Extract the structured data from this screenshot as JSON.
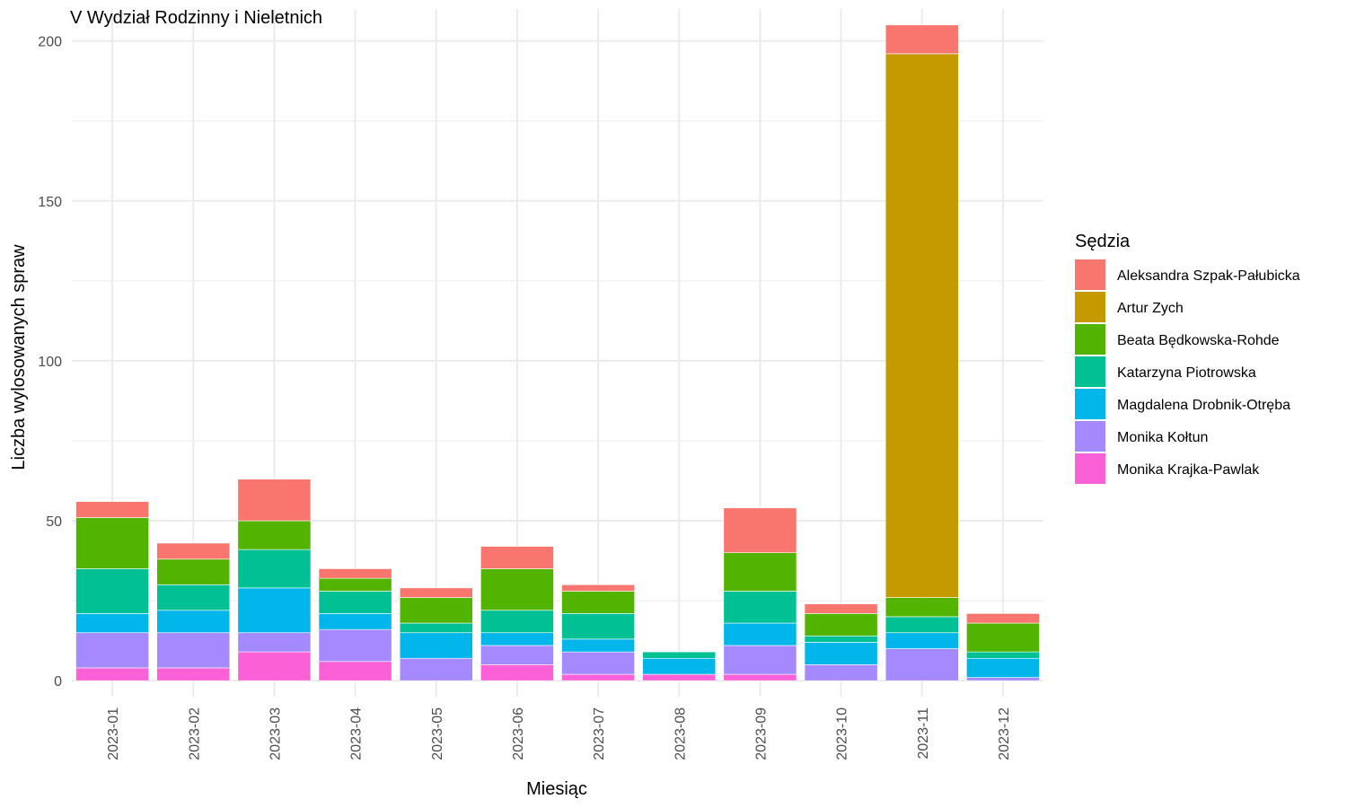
{
  "chart_data": {
    "type": "bar",
    "stacked": true,
    "title": "V Wydział Rodzinny i Nieletnich",
    "xlabel": "Miesiąc",
    "ylabel": "Liczba wylosowanych spraw",
    "ylim": [
      -5,
      210
    ],
    "yticks": [
      0,
      50,
      100,
      150,
      200
    ],
    "grid": true,
    "legend_title": "Sędzia",
    "legend_position": "right",
    "categories": [
      "2023-01",
      "2023-02",
      "2023-03",
      "2023-04",
      "2023-05",
      "2023-06",
      "2023-07",
      "2023-08",
      "2023-09",
      "2023-10",
      "2023-11",
      "2023-12"
    ],
    "series": [
      {
        "name": "Aleksandra Szpak-Pałubicka",
        "color": "#F8766D",
        "values": [
          5,
          5,
          13,
          3,
          3,
          7,
          2,
          0,
          14,
          3,
          9,
          3
        ]
      },
      {
        "name": "Artur Zych",
        "color": "#C49A00",
        "values": [
          0,
          0,
          0,
          0,
          0,
          0,
          0,
          0,
          0,
          0,
          170,
          0
        ]
      },
      {
        "name": "Beata Będkowska-Rohde",
        "color": "#53B400",
        "values": [
          16,
          8,
          9,
          4,
          8,
          13,
          7,
          0,
          12,
          7,
          6,
          9
        ]
      },
      {
        "name": "Katarzyna Piotrowska",
        "color": "#00C094",
        "values": [
          14,
          8,
          12,
          7,
          3,
          7,
          8,
          2,
          10,
          2,
          5,
          2
        ]
      },
      {
        "name": "Magdalena Drobnik-Otręba",
        "color": "#00B6EB",
        "values": [
          6,
          7,
          14,
          5,
          8,
          4,
          4,
          5,
          7,
          7,
          5,
          6
        ]
      },
      {
        "name": "Monika Kołtun",
        "color": "#A58AFF",
        "values": [
          11,
          11,
          6,
          10,
          7,
          6,
          7,
          0,
          9,
          5,
          10,
          1
        ]
      },
      {
        "name": "Monika Krajka-Pawlak",
        "color": "#FB61D7",
        "values": [
          4,
          4,
          9,
          6,
          0,
          5,
          2,
          2,
          2,
          0,
          0,
          0
        ]
      }
    ]
  }
}
